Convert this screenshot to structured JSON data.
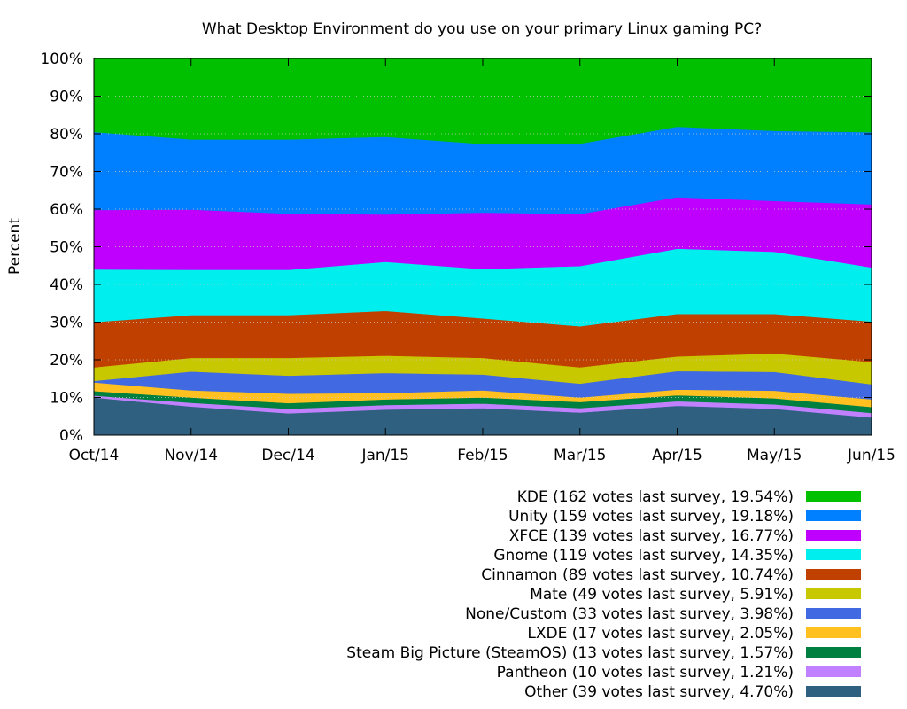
{
  "chart_data": {
    "type": "area",
    "stacked": true,
    "title": "What Desktop Environment do you use on your primary Linux gaming PC?",
    "xlabel": "",
    "ylabel": "Percent",
    "ylim": [
      0,
      100
    ],
    "y_ticks": [
      "0%",
      "10%",
      "20%",
      "30%",
      "40%",
      "50%",
      "60%",
      "70%",
      "80%",
      "90%",
      "100%"
    ],
    "categories": [
      "Oct/14",
      "Nov/14",
      "Dec/14",
      "Jan/15",
      "Feb/15",
      "Mar/15",
      "Apr/15",
      "May/15",
      "Jun/15"
    ],
    "grid": true,
    "legend_position": "bottom-right",
    "series": [
      {
        "name": "Other",
        "legend_label": "Other (39 votes last survey, 4.70%)",
        "color": "#306080",
        "values": [
          10.0,
          7.6,
          5.8,
          6.8,
          7.2,
          6.0,
          7.8,
          7.0,
          4.7
        ]
      },
      {
        "name": "Pantheon",
        "legend_label": "Pantheon (10 votes last survey, 1.21%)",
        "color": "#c080ff",
        "values": [
          0.5,
          1.0,
          1.2,
          1.2,
          1.2,
          1.2,
          1.2,
          1.2,
          1.21
        ]
      },
      {
        "name": "Steam Big Picture (SteamOS)",
        "legend_label": "Steam Big Picture (SteamOS) (13 votes last survey, 1.57%)",
        "color": "#008040",
        "values": [
          1.2,
          1.4,
          1.5,
          1.5,
          1.6,
          1.6,
          1.6,
          1.6,
          1.57
        ]
      },
      {
        "name": "LXDE",
        "legend_label": "LXDE (17 votes last survey, 2.05%)",
        "color": "#ffc020",
        "values": [
          2.3,
          1.9,
          2.5,
          1.7,
          1.9,
          1.2,
          1.5,
          2.0,
          2.05
        ]
      },
      {
        "name": "None/Custom",
        "legend_label": "None/Custom (33 votes last survey, 3.98%)",
        "color": "#4169e1",
        "values": [
          0.4,
          5.0,
          4.8,
          5.3,
          4.2,
          3.7,
          4.9,
          5.0,
          3.98
        ]
      },
      {
        "name": "Mate",
        "legend_label": "Mate (49 votes last survey, 5.91%)",
        "color": "#c8c800",
        "values": [
          3.6,
          3.6,
          4.7,
          4.6,
          4.4,
          4.3,
          3.9,
          4.9,
          5.91
        ]
      },
      {
        "name": "Cinnamon",
        "legend_label": "Cinnamon (89 votes last survey, 10.74%)",
        "color": "#c04000",
        "values": [
          12.0,
          11.4,
          11.4,
          11.9,
          10.5,
          10.9,
          11.3,
          10.5,
          10.74
        ]
      },
      {
        "name": "Gnome",
        "legend_label": "Gnome (119 votes last survey, 14.35%)",
        "color": "#00eeee",
        "values": [
          14.0,
          12.0,
          12.0,
          13.0,
          13.1,
          16.0,
          17.3,
          16.5,
          14.35
        ]
      },
      {
        "name": "XFCE",
        "legend_label": "XFCE (139 votes last survey, 16.77%)",
        "color": "#c000ff",
        "values": [
          15.8,
          16.0,
          14.9,
          12.6,
          15.0,
          13.8,
          13.7,
          13.5,
          16.77
        ]
      },
      {
        "name": "Unity",
        "legend_label": "Unity (159 votes last survey, 19.18%)",
        "color": "#0080ff",
        "values": [
          20.7,
          18.6,
          19.7,
          20.6,
          18.2,
          18.7,
          18.7,
          18.6,
          19.18
        ]
      },
      {
        "name": "KDE",
        "legend_label": "KDE (162 votes last survey, 19.54%)",
        "color": "#00c000",
        "values": [
          19.5,
          21.5,
          21.5,
          20.8,
          22.7,
          22.6,
          18.1,
          19.2,
          19.54
        ]
      }
    ]
  }
}
